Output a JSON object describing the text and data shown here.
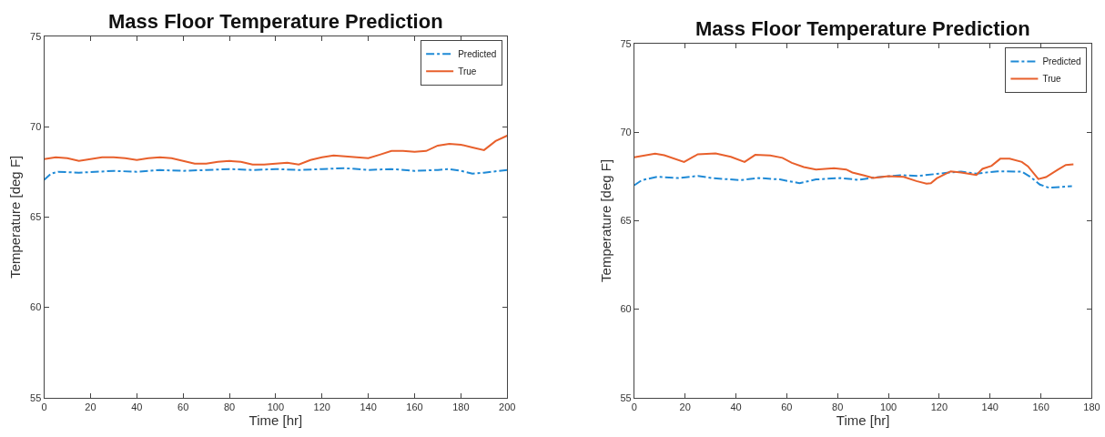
{
  "chart_data": [
    {
      "type": "line",
      "title": "Mass Floor Temperature Prediction",
      "xlabel": "Time [hr]",
      "ylabel": "Temperature [deg F]",
      "xlim": [
        0,
        200
      ],
      "xticks": [
        0,
        20,
        40,
        60,
        80,
        100,
        120,
        140,
        160,
        180,
        200
      ],
      "ylim": [
        55,
        75
      ],
      "yticks": [
        55,
        60,
        65,
        70,
        75
      ],
      "legend": "top right",
      "marker": "none",
      "series": [
        {
          "name": "Predicted",
          "color": "#1f8ad6",
          "line_style": "dashed",
          "x": [
            0,
            3,
            6,
            15,
            30,
            40,
            50,
            60,
            70,
            80,
            90,
            100,
            110,
            120,
            130,
            140,
            150,
            160,
            170,
            175,
            180,
            185,
            190,
            200
          ],
          "values": [
            67.05,
            67.4,
            67.5,
            67.45,
            67.55,
            67.5,
            67.6,
            67.55,
            67.6,
            67.65,
            67.6,
            67.65,
            67.6,
            67.65,
            67.7,
            67.6,
            67.65,
            67.55,
            67.6,
            67.65,
            67.55,
            67.4,
            67.45,
            67.6
          ]
        },
        {
          "name": "True",
          "color": "#e8602c",
          "line_style": "solid",
          "x": [
            0,
            5,
            10,
            15,
            20,
            25,
            30,
            35,
            40,
            45,
            50,
            55,
            60,
            65,
            70,
            75,
            80,
            85,
            90,
            95,
            100,
            105,
            110,
            115,
            120,
            125,
            130,
            135,
            140,
            145,
            150,
            155,
            160,
            165,
            170,
            175,
            180,
            185,
            190,
            195,
            200
          ],
          "values": [
            68.2,
            68.3,
            68.25,
            68.1,
            68.2,
            68.3,
            68.3,
            68.25,
            68.15,
            68.25,
            68.3,
            68.25,
            68.1,
            67.95,
            67.95,
            68.05,
            68.1,
            68.05,
            67.9,
            67.9,
            67.95,
            68.0,
            67.9,
            68.15,
            68.3,
            68.4,
            68.35,
            68.3,
            68.25,
            68.45,
            68.65,
            68.65,
            68.6,
            68.65,
            68.95,
            69.05,
            69.0,
            68.85,
            68.7,
            69.2,
            69.5
          ]
        }
      ]
    },
    {
      "type": "line",
      "title": "Mass Floor Temperature Prediction",
      "xlabel": "Time [hr]",
      "ylabel": "Temperature [deg F]",
      "xlim": [
        0,
        180
      ],
      "xticks": [
        0,
        20,
        40,
        60,
        80,
        100,
        120,
        140,
        160,
        180
      ],
      "ylim": [
        55,
        75
      ],
      "yticks": [
        55,
        60,
        65,
        70,
        75
      ],
      "legend": "top right",
      "marker": "none",
      "series": [
        {
          "name": "Predicted",
          "color": "#1f8ad6",
          "line_style": "dashed",
          "x": [
            0,
            3,
            9,
            17.4,
            25,
            31,
            41.8,
            49,
            57.3,
            65,
            71.5,
            81,
            88,
            95,
            104.7,
            111.8,
            123.8,
            128.6,
            134.6,
            142.9,
            152.5,
            156,
            159.6,
            163.2,
            168,
            172.2
          ],
          "values": [
            67.0,
            67.29,
            67.48,
            67.41,
            67.53,
            67.4,
            67.29,
            67.41,
            67.33,
            67.12,
            67.33,
            67.41,
            67.31,
            67.45,
            67.57,
            67.53,
            67.72,
            67.77,
            67.66,
            67.79,
            67.77,
            67.46,
            67.04,
            66.86,
            66.91,
            66.95
          ]
        },
        {
          "name": "True",
          "color": "#e8602c",
          "line_style": "solid",
          "x": [
            0,
            8.2,
            11.8,
            19.6,
            25,
            32,
            38,
            43.4,
            47.6,
            53.5,
            58.3,
            62,
            66.7,
            71.5,
            78.6,
            83.4,
            85.8,
            90.5,
            94,
            100,
            106,
            111,
            115,
            116.7,
            119,
            124.5,
            128.6,
            134.6,
            137,
            140.6,
            144,
            147.7,
            152.5,
            154.9,
            159,
            162,
            166.8,
            169.8,
            172.8
          ],
          "values": [
            68.58,
            68.79,
            68.7,
            68.32,
            68.75,
            68.8,
            68.61,
            68.32,
            68.72,
            68.68,
            68.55,
            68.27,
            68.03,
            67.89,
            67.96,
            67.89,
            67.72,
            67.55,
            67.41,
            67.52,
            67.48,
            67.24,
            67.09,
            67.12,
            67.39,
            67.79,
            67.72,
            67.58,
            67.93,
            68.1,
            68.5,
            68.5,
            68.32,
            68.07,
            67.35,
            67.46,
            67.89,
            68.15,
            68.19
          ]
        }
      ]
    }
  ]
}
